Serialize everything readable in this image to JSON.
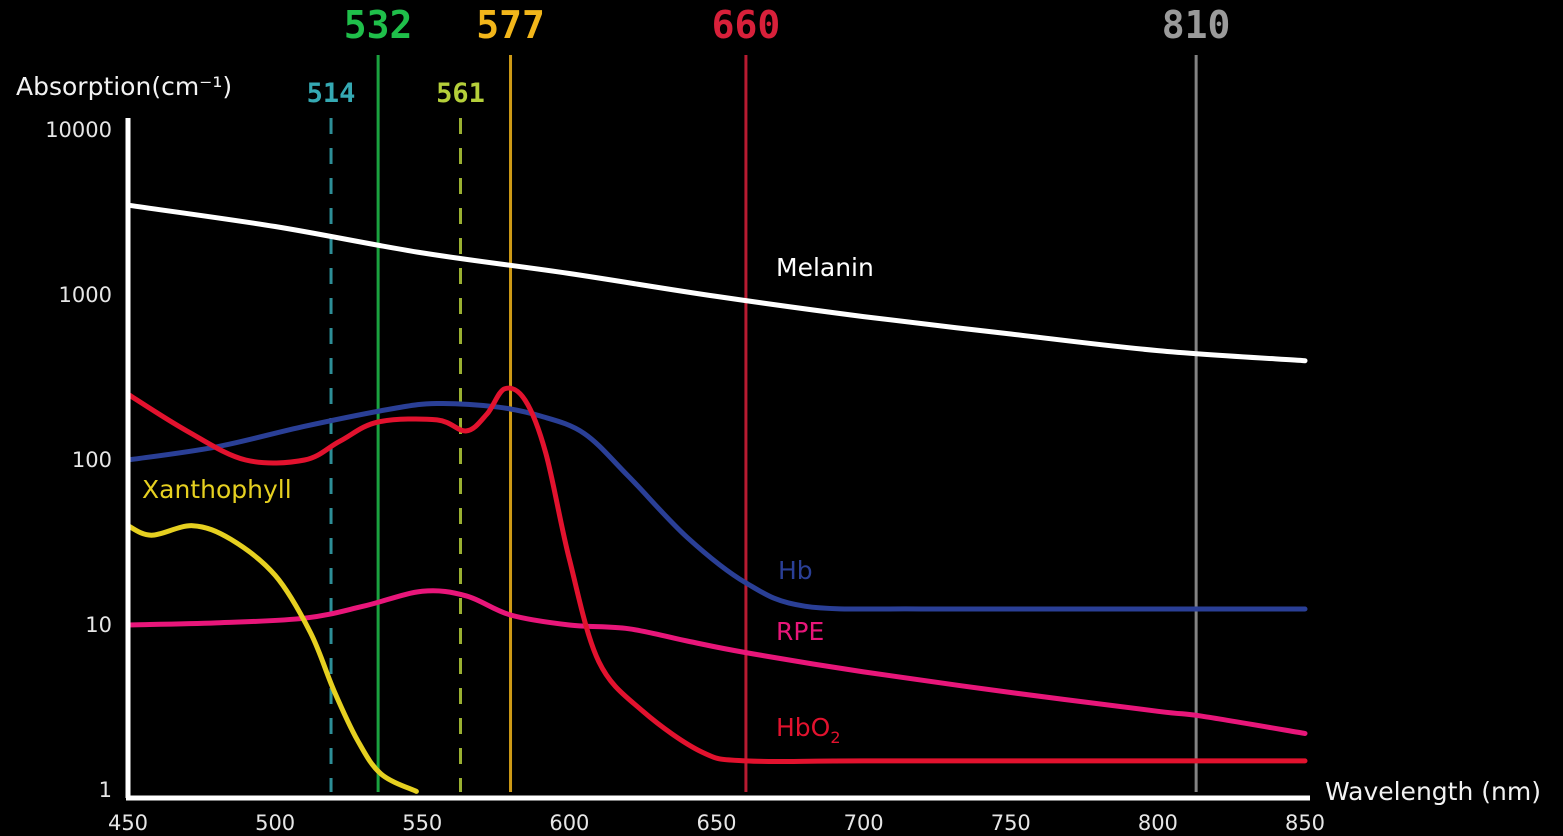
{
  "chart_data": {
    "type": "line",
    "xlabel": "Wavelength (nm)",
    "ylabel": "Absorption(cm⁻¹)",
    "xlim": [
      450,
      850
    ],
    "ylim": [
      1,
      10000
    ],
    "yscale": "log",
    "x_ticks": [
      450,
      500,
      550,
      600,
      650,
      700,
      750,
      800,
      850
    ],
    "y_ticks": [
      1,
      10,
      100,
      1000,
      10000
    ],
    "grid": false,
    "lasers": [
      {
        "label": "514",
        "wavelength": 519,
        "style": "dashed",
        "color": "#35a9b3"
      },
      {
        "label": "532",
        "wavelength": 535,
        "style": "solid",
        "color": "#1fbf4a"
      },
      {
        "label": "561",
        "wavelength": 563,
        "style": "dashed",
        "color": "#b5cf3a"
      },
      {
        "label": "577",
        "wavelength": 580,
        "style": "solid",
        "color": "#f2b61a"
      },
      {
        "label": "660",
        "wavelength": 660,
        "style": "solid",
        "color": "#d8203a"
      },
      {
        "label": "810",
        "wavelength": 813,
        "style": "solid",
        "color": "#9a9a9a"
      }
    ],
    "series": [
      {
        "name": "Melanin",
        "color": "#ffffff",
        "label_pos": {
          "wavelength": 660,
          "value": 1000
        },
        "points": [
          [
            450,
            3500
          ],
          [
            500,
            2600
          ],
          [
            550,
            1800
          ],
          [
            600,
            1350
          ],
          [
            650,
            980
          ],
          [
            700,
            740
          ],
          [
            750,
            580
          ],
          [
            800,
            460
          ],
          [
            850,
            400
          ]
        ]
      },
      {
        "name": "Hb",
        "color": "#2a3f96",
        "label_pos": {
          "wavelength": 660,
          "value": 15
        },
        "points": [
          [
            450,
            100
          ],
          [
            480,
            120
          ],
          [
            510,
            160
          ],
          [
            540,
            205
          ],
          [
            555,
            220
          ],
          [
            575,
            210
          ],
          [
            590,
            185
          ],
          [
            605,
            145
          ],
          [
            620,
            80
          ],
          [
            640,
            34
          ],
          [
            660,
            18
          ],
          [
            680,
            13
          ],
          [
            720,
            12.5
          ],
          [
            780,
            12.5
          ],
          [
            850,
            12.5
          ]
        ]
      },
      {
        "name": "RPE",
        "color": "#e8167a",
        "label_pos": {
          "wavelength": 660,
          "value": 6.5
        },
        "points": [
          [
            450,
            10
          ],
          [
            480,
            10.3
          ],
          [
            510,
            11
          ],
          [
            530,
            13
          ],
          [
            550,
            16
          ],
          [
            565,
            15
          ],
          [
            580,
            11.5
          ],
          [
            600,
            10
          ],
          [
            620,
            9.5
          ],
          [
            640,
            8
          ],
          [
            660,
            6.8
          ],
          [
            700,
            5.2
          ],
          [
            750,
            3.9
          ],
          [
            800,
            3.0
          ],
          [
            815,
            2.8
          ],
          [
            850,
            2.2
          ]
        ]
      },
      {
        "name": "HbO",
        "name_subscript": "2",
        "color": "#e2122e",
        "label_pos": {
          "wavelength": 660,
          "value": 2.1
        },
        "points": [
          [
            450,
            250
          ],
          [
            470,
            150
          ],
          [
            490,
            100
          ],
          [
            510,
            100
          ],
          [
            522,
            130
          ],
          [
            535,
            170
          ],
          [
            555,
            175
          ],
          [
            565,
            150
          ],
          [
            572,
            190
          ],
          [
            578,
            270
          ],
          [
            585,
            230
          ],
          [
            592,
            110
          ],
          [
            600,
            25
          ],
          [
            610,
            6
          ],
          [
            625,
            3
          ],
          [
            645,
            1.7
          ],
          [
            660,
            1.5
          ],
          [
            700,
            1.5
          ],
          [
            800,
            1.5
          ],
          [
            850,
            1.5
          ]
        ]
      },
      {
        "name": "Xanthophyll",
        "color": "#e6d020",
        "label_pos": {
          "wavelength": 449,
          "value": 60
        },
        "points": [
          [
            450,
            40
          ],
          [
            458,
            35
          ],
          [
            472,
            40
          ],
          [
            485,
            33
          ],
          [
            500,
            20
          ],
          [
            512,
            9
          ],
          [
            520,
            4
          ],
          [
            528,
            2
          ],
          [
            536,
            1.25
          ],
          [
            548,
            0.98
          ]
        ]
      }
    ]
  }
}
